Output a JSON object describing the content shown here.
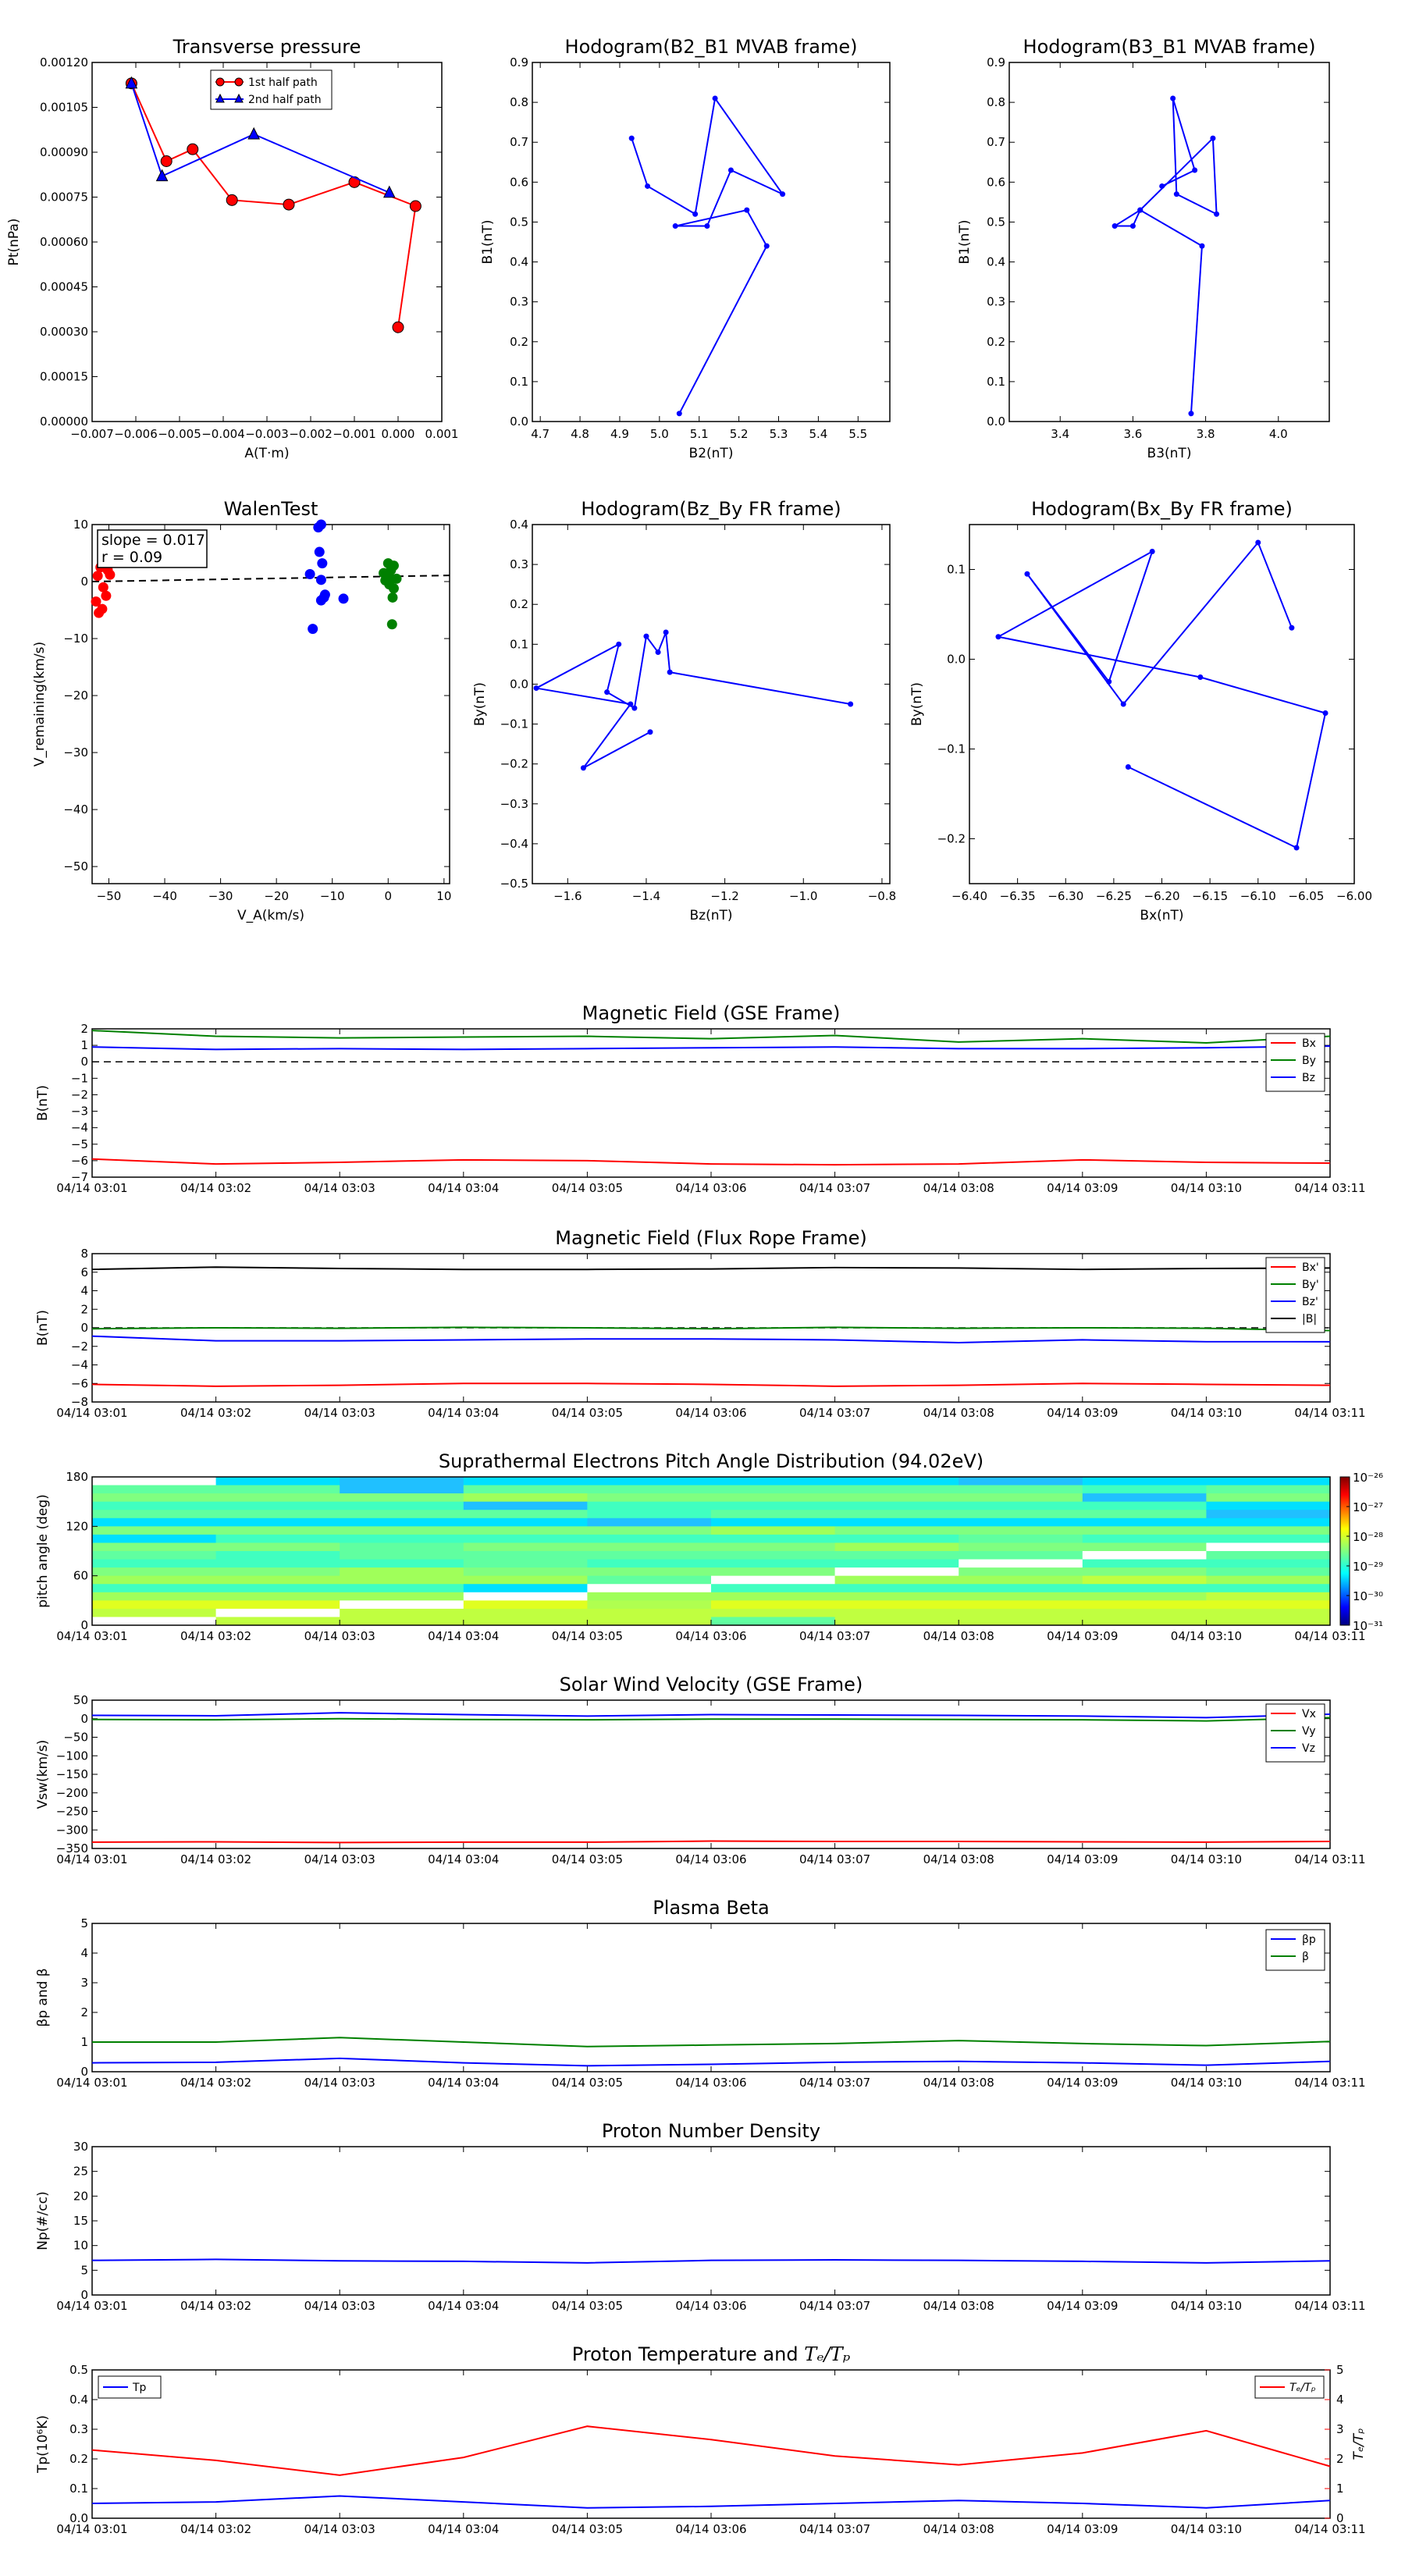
{
  "colors": {
    "red": "#ff0000",
    "green": "#008000",
    "blue": "#0000ff",
    "black": "#000000"
  },
  "chart_data": [
    {
      "type": "line",
      "title": "Transverse pressure",
      "xlabel": "A(T·m)",
      "ylabel": "Pt(nPa)",
      "xlim": [
        -0.007,
        0.001
      ],
      "ylim": [
        0,
        0.0012
      ],
      "xticks": [
        "−0.007",
        "−0.006",
        "−0.005",
        "−0.004",
        "−0.003",
        "−0.002",
        "−0.001",
        "0.000",
        "0.001"
      ],
      "yticks": [
        "0.00000",
        "0.00015",
        "0.00030",
        "0.00045",
        "0.00060",
        "0.00075",
        "0.00090",
        "0.00105",
        "0.00120"
      ],
      "legend_position": "top-right",
      "series": [
        {
          "name": "1st half path",
          "color": "#ff0000",
          "marker": "circle",
          "x": [
            -0.0061,
            -0.0053,
            -0.0047,
            -0.0038,
            -0.0025,
            -0.001,
            0.0004,
            0.0
          ],
          "y": [
            0.00113,
            0.00087,
            0.00091,
            0.00074,
            0.000725,
            0.0008,
            0.00072,
            0.000315
          ]
        },
        {
          "name": "2nd half path",
          "color": "#0000ff",
          "marker": "triangle",
          "x": [
            -0.0061,
            -0.0054,
            -0.0033,
            -0.0002
          ],
          "y": [
            0.00113,
            0.00082,
            0.00096,
            0.000765
          ]
        }
      ]
    },
    {
      "type": "line",
      "title": "Hodogram(B2_B1 MVAB frame)",
      "xlabel": "B2(nT)",
      "ylabel": "B1(nT)",
      "xlim": [
        4.68,
        5.58
      ],
      "ylim": [
        0,
        0.9
      ],
      "xticks": [
        "4.7",
        "4.8",
        "4.9",
        "5.0",
        "5.1",
        "5.2",
        "5.3",
        "5.4",
        "5.5"
      ],
      "yticks": [
        "0.0",
        "0.1",
        "0.2",
        "0.3",
        "0.4",
        "0.5",
        "0.6",
        "0.7",
        "0.8",
        "0.9"
      ],
      "series": [
        {
          "color": "#0000ff",
          "x": [
            5.05,
            5.27,
            5.22,
            5.04,
            5.12,
            5.18,
            5.31,
            5.14,
            5.09,
            4.97,
            4.93
          ],
          "y": [
            0.02,
            0.44,
            0.53,
            0.49,
            0.49,
            0.63,
            0.57,
            0.81,
            0.52,
            0.59,
            0.71
          ]
        }
      ]
    },
    {
      "type": "line",
      "title": "Hodogram(B3_B1 MVAB frame)",
      "xlabel": "B3(nT)",
      "ylabel": "B1(nT)",
      "xlim": [
        3.26,
        4.14
      ],
      "ylim": [
        0,
        0.9
      ],
      "xticks": [
        "3.4",
        "3.6",
        "3.8",
        "4.0"
      ],
      "yticks": [
        "0.0",
        "0.1",
        "0.2",
        "0.3",
        "0.4",
        "0.5",
        "0.6",
        "0.7",
        "0.8",
        "0.9"
      ],
      "series": [
        {
          "color": "#0000ff",
          "x": [
            3.76,
            3.79,
            3.62,
            3.55,
            3.6,
            3.62,
            3.82,
            3.83,
            3.72,
            3.71,
            3.77,
            3.68
          ],
          "y": [
            0.02,
            0.44,
            0.53,
            0.49,
            0.49,
            0.53,
            0.71,
            0.52,
            0.57,
            0.81,
            0.63,
            0.59
          ]
        }
      ]
    },
    {
      "type": "scatter",
      "title": "WalenTest",
      "xlabel": "V_A(km/s)",
      "ylabel": "V_remaining(km/s)",
      "xlim": [
        -53,
        11
      ],
      "ylim": [
        -53,
        10
      ],
      "xticks": [
        "−50",
        "−40",
        "−30",
        "−20",
        "−10",
        "0",
        "10"
      ],
      "yticks": [
        "−50",
        "−40",
        "−30",
        "−20",
        "−10",
        "0",
        "10"
      ],
      "annotation": [
        "slope = 0.017",
        "r = 0.09"
      ],
      "fit_line": {
        "slope": 0.017,
        "intercept": 0.9
      },
      "series": [
        {
          "color": "#ff0000",
          "x": [
            -51.5,
            -52.0,
            -50.2,
            -49.8,
            -51.0,
            -52.3,
            -51.2,
            -51.8,
            -50.5
          ],
          "y": [
            2.5,
            1.0,
            2.0,
            1.2,
            -1.0,
            -3.5,
            -4.8,
            -5.5,
            -2.5
          ]
        },
        {
          "color": "#0000ff",
          "x": [
            -12.0,
            -12.5,
            -12.3,
            -11.8,
            -14.0,
            -12.0,
            -11.5,
            -8.0,
            -12.0,
            -11.3,
            -13.5
          ],
          "y": [
            10.0,
            9.5,
            5.2,
            3.2,
            1.3,
            0.3,
            -2.8,
            -3.0,
            -3.3,
            -2.3,
            -8.3
          ]
        },
        {
          "color": "#008000",
          "x": [
            0.0,
            1.0,
            0.5,
            -0.8,
            0.3,
            1.5,
            0.2,
            1.0,
            -0.5,
            0.8,
            0.7
          ],
          "y": [
            3.2,
            2.8,
            2.0,
            1.5,
            0.7,
            0.5,
            -0.5,
            -1.2,
            0.2,
            -2.8,
            -7.5
          ]
        }
      ]
    },
    {
      "type": "line",
      "title": "Hodogram(Bz_By FR frame)",
      "xlabel": "Bz(nT)",
      "ylabel": "By(nT)",
      "xlim": [
        -1.69,
        -0.78
      ],
      "ylim": [
        -0.5,
        0.4
      ],
      "xticks": [
        "−1.6",
        "−1.4",
        "−1.2",
        "−1.0",
        "−0.8"
      ],
      "yticks": [
        "−0.5",
        "−0.4",
        "−0.3",
        "−0.2",
        "−0.1",
        "0.0",
        "0.1",
        "0.2",
        "0.3",
        "0.4"
      ],
      "series": [
        {
          "color": "#0000ff",
          "x": [
            -0.88,
            -1.34,
            -1.35,
            -1.37,
            -1.4,
            -1.43,
            -1.5,
            -1.47,
            -1.68,
            -1.44,
            -1.56,
            -1.39
          ],
          "y": [
            -0.05,
            0.03,
            0.13,
            0.08,
            0.12,
            -0.06,
            -0.02,
            0.1,
            -0.01,
            -0.05,
            -0.21,
            -0.12
          ]
        }
      ]
    },
    {
      "type": "line",
      "title": "Hodogram(Bx_By FR frame)",
      "xlabel": "Bx(nT)",
      "ylabel": "By(nT)",
      "xlim": [
        -6.4,
        -6.0
      ],
      "ylim": [
        -0.25,
        0.15
      ],
      "xticks": [
        "−6.40",
        "−6.35",
        "−6.30",
        "−6.25",
        "−6.20",
        "−6.15",
        "−6.10",
        "−6.05",
        "−6.00"
      ],
      "yticks": [
        "−0.2",
        "−0.1",
        "0.0",
        "0.1"
      ],
      "series": [
        {
          "color": "#0000ff",
          "x": [
            -6.235,
            -6.06,
            -6.03,
            -6.16,
            -6.37,
            -6.21,
            -6.255,
            -6.34,
            -6.24,
            -6.1,
            -6.065
          ],
          "y": [
            -0.12,
            -0.21,
            -0.06,
            -0.02,
            0.025,
            0.12,
            -0.025,
            0.095,
            -0.05,
            0.13,
            0.035
          ]
        }
      ]
    },
    {
      "type": "line",
      "title": "Magnetic Field (GSE Frame)",
      "ylabel": "B(nT)",
      "ylim": [
        -7,
        2
      ],
      "yticks": [
        "−7",
        "−6",
        "−5",
        "−4",
        "−3",
        "−2",
        "−1",
        "0",
        "1",
        "2"
      ],
      "xticks": [
        "04/14 03:01",
        "04/14 03:02",
        "04/14 03:03",
        "04/14 03:04",
        "04/14 03:05",
        "04/14 03:06",
        "04/14 03:07",
        "04/14 03:08",
        "04/14 03:09",
        "04/14 03:10",
        "04/14 03:11"
      ],
      "legend_position": "right",
      "zero_line": true,
      "series": [
        {
          "name": "Bx",
          "color": "#ff0000",
          "values": [
            -5.9,
            -6.2,
            -6.1,
            -5.95,
            -6.0,
            -6.2,
            -6.25,
            -6.2,
            -5.95,
            -6.1,
            -6.15
          ]
        },
        {
          "name": "By",
          "color": "#008000",
          "values": [
            1.9,
            1.55,
            1.45,
            1.5,
            1.55,
            1.4,
            1.6,
            1.2,
            1.4,
            1.15,
            1.55
          ]
        },
        {
          "name": "Bz",
          "color": "#0000ff",
          "values": [
            0.9,
            0.75,
            0.8,
            0.75,
            0.8,
            0.85,
            0.9,
            0.8,
            0.8,
            0.85,
            0.95
          ]
        }
      ]
    },
    {
      "type": "line",
      "title": "Magnetic Field (Flux Rope Frame)",
      "ylabel": "B(nT)",
      "ylim": [
        -8,
        8
      ],
      "yticks": [
        "−8",
        "−6",
        "−4",
        "−2",
        "0",
        "2",
        "4",
        "6",
        "8"
      ],
      "xticks": [
        "04/14 03:01",
        "04/14 03:02",
        "04/14 03:03",
        "04/14 03:04",
        "04/14 03:05",
        "04/14 03:06",
        "04/14 03:07",
        "04/14 03:08",
        "04/14 03:09",
        "04/14 03:10",
        "04/14 03:11"
      ],
      "legend_position": "right",
      "zero_line": true,
      "series": [
        {
          "name": "Bx'",
          "color": "#ff0000",
          "values": [
            -6.1,
            -6.3,
            -6.2,
            -6.0,
            -6.0,
            -6.1,
            -6.3,
            -6.2,
            -6.0,
            -6.1,
            -6.2
          ]
        },
        {
          "name": "By'",
          "color": "#008000",
          "values": [
            -0.1,
            0.0,
            -0.05,
            0.05,
            0.0,
            -0.1,
            0.05,
            -0.05,
            0.0,
            -0.05,
            -0.3
          ]
        },
        {
          "name": "Bz'",
          "color": "#0000ff",
          "values": [
            -0.9,
            -1.4,
            -1.4,
            -1.3,
            -1.2,
            -1.2,
            -1.3,
            -1.6,
            -1.3,
            -1.5,
            -1.5
          ]
        },
        {
          "name": "|B|",
          "color": "#000000",
          "values": [
            6.3,
            6.55,
            6.4,
            6.3,
            6.3,
            6.35,
            6.5,
            6.45,
            6.3,
            6.4,
            6.45
          ]
        }
      ]
    },
    {
      "type": "heatmap",
      "title": "Suprathermal Electrons Pitch Angle Distribution (94.02eV)",
      "ylabel": "pitch angle (deg)",
      "ylim": [
        0,
        180
      ],
      "yticks": [
        "0",
        "60",
        "120",
        "180"
      ],
      "xticks": [
        "04/14 03:01",
        "04/14 03:02",
        "04/14 03:03",
        "04/14 03:04",
        "04/14 03:05",
        "04/14 03:06",
        "04/14 03:07",
        "04/14 03:08",
        "04/14 03:09",
        "04/14 03:10",
        "04/14 03:11"
      ],
      "colorbar_labels": [
        "10⁻²⁶",
        "10⁻²⁷",
        "10⁻²⁸",
        "10⁻²⁹",
        "10⁻³⁰",
        "10⁻³¹"
      ],
      "colormap": "jet",
      "color_scale": "log",
      "colorbar_range_exponents": [
        -31,
        -26
      ]
    },
    {
      "type": "line",
      "title": "Solar Wind Velocity (GSE Frame)",
      "ylabel": "Vsw(km/s)",
      "ylim": [
        -350,
        50
      ],
      "yticks": [
        "−350",
        "−300",
        "−250",
        "−200",
        "−150",
        "−100",
        "−50",
        "0",
        "50"
      ],
      "xticks": [
        "04/14 03:01",
        "04/14 03:02",
        "04/14 03:03",
        "04/14 03:04",
        "04/14 03:05",
        "04/14 03:06",
        "04/14 03:07",
        "04/14 03:08",
        "04/14 03:09",
        "04/14 03:10",
        "04/14 03:11"
      ],
      "legend_position": "right",
      "series": [
        {
          "name": "Vx",
          "color": "#ff0000",
          "values": [
            -333,
            -332,
            -334,
            -333,
            -333,
            -330,
            -331,
            -331,
            -332,
            -333,
            -331
          ]
        },
        {
          "name": "Vy",
          "color": "#008000",
          "values": [
            -2,
            -3,
            0,
            -2,
            -3,
            -1,
            -1,
            -2,
            -3,
            -6,
            3
          ]
        },
        {
          "name": "Vz",
          "color": "#0000ff",
          "values": [
            9,
            8,
            16,
            11,
            7,
            11,
            10,
            9,
            7,
            3,
            12
          ]
        }
      ]
    },
    {
      "type": "line",
      "title": "Plasma Beta",
      "ylabel": "βp and β",
      "ylim": [
        0,
        5
      ],
      "yticks": [
        "0",
        "1",
        "2",
        "3",
        "4",
        "5"
      ],
      "xticks": [
        "04/14 03:01",
        "04/14 03:02",
        "04/14 03:03",
        "04/14 03:04",
        "04/14 03:05",
        "04/14 03:06",
        "04/14 03:07",
        "04/14 03:08",
        "04/14 03:09",
        "04/14 03:10",
        "04/14 03:11"
      ],
      "legend_position": "top-right",
      "series": [
        {
          "name": "βp",
          "color": "#0000ff",
          "values": [
            0.3,
            0.32,
            0.45,
            0.3,
            0.2,
            0.25,
            0.32,
            0.35,
            0.3,
            0.22,
            0.35
          ]
        },
        {
          "name": "β",
          "color": "#008000",
          "values": [
            1.0,
            1.0,
            1.15,
            1.0,
            0.85,
            0.9,
            0.95,
            1.05,
            0.95,
            0.88,
            1.02
          ]
        }
      ]
    },
    {
      "type": "line",
      "title": "Proton Number Density",
      "ylabel": "Np(#/cc)",
      "ylim": [
        0,
        30
      ],
      "yticks": [
        "0",
        "5",
        "10",
        "15",
        "20",
        "25",
        "30"
      ],
      "xticks": [
        "04/14 03:01",
        "04/14 03:02",
        "04/14 03:03",
        "04/14 03:04",
        "04/14 03:05",
        "04/14 03:06",
        "04/14 03:07",
        "04/14 03:08",
        "04/14 03:09",
        "04/14 03:10",
        "04/14 03:11"
      ],
      "series": [
        {
          "color": "#0000ff",
          "values": [
            7.0,
            7.2,
            6.9,
            6.8,
            6.5,
            7.0,
            7.1,
            7.0,
            6.8,
            6.5,
            6.9
          ]
        }
      ]
    },
    {
      "type": "line",
      "title": "Proton Temperature and Te/Tp",
      "title_math": "Tₑ/Tₚ",
      "title_prefix": "Proton Temperature and ",
      "ylabel": "Tp(10⁶K)",
      "ylim": [
        0,
        0.5
      ],
      "yticks": [
        "0.0",
        "0.1",
        "0.2",
        "0.3",
        "0.4",
        "0.5"
      ],
      "y2label": "Tₑ/Tₚ",
      "y2lim": [
        0,
        5
      ],
      "y2ticks": [
        "0",
        "1",
        "2",
        "3",
        "4",
        "5"
      ],
      "xticks": [
        "04/14 03:01",
        "04/14 03:02",
        "04/14 03:03",
        "04/14 03:04",
        "04/14 03:05",
        "04/14 03:06",
        "04/14 03:07",
        "04/14 03:08",
        "04/14 03:09",
        "04/14 03:10",
        "04/14 03:11"
      ],
      "series": [
        {
          "name": "Tp",
          "axis": "left",
          "color": "#0000ff",
          "values": [
            0.05,
            0.055,
            0.075,
            0.055,
            0.035,
            0.04,
            0.05,
            0.06,
            0.05,
            0.035,
            0.06
          ]
        },
        {
          "name": "Tₑ/Tₚ",
          "axis": "right",
          "color": "#ff0000",
          "values": [
            2.3,
            1.95,
            1.45,
            2.05,
            3.1,
            2.65,
            2.1,
            1.8,
            2.2,
            2.95,
            1.75
          ]
        }
      ]
    }
  ]
}
